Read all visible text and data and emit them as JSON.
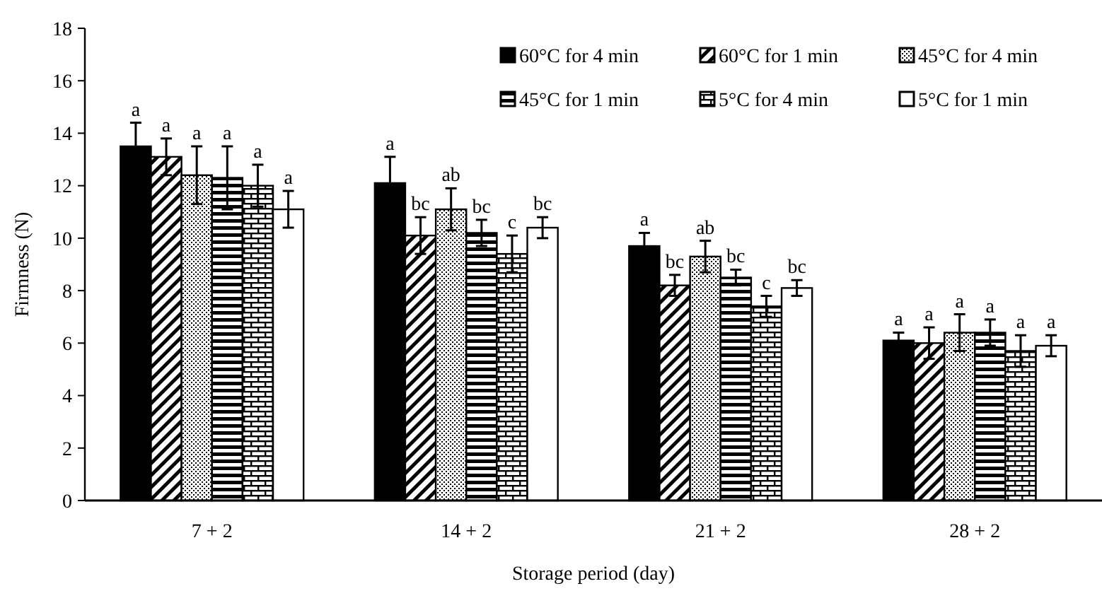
{
  "chart_data": {
    "type": "bar",
    "xlabel": "Storage period (day)",
    "ylabel": "Firmness (N)",
    "categories": [
      "7 + 2",
      "14 + 2",
      "21 + 2",
      "28 + 2"
    ],
    "ylim": [
      0,
      18
    ],
    "yticks": [
      0,
      2,
      4,
      6,
      8,
      10,
      12,
      14,
      16,
      18
    ],
    "grid": false,
    "legend": "top right",
    "series": [
      {
        "name": "60°C for 4 min",
        "color": "#000000",
        "values": [
          13.5,
          12.1,
          9.7,
          6.1
        ],
        "errors": [
          0.9,
          1.0,
          0.5,
          0.3
        ],
        "value_labels": [
          "a",
          "a",
          "a",
          "a"
        ]
      },
      {
        "name": "60°C for 1 min",
        "color": "#000000",
        "values": [
          13.1,
          10.1,
          8.2,
          6.0
        ],
        "errors": [
          0.7,
          0.7,
          0.4,
          0.6
        ],
        "value_labels": [
          "a",
          "bc",
          "bc",
          "a"
        ]
      },
      {
        "name": "45°C for 4 min",
        "color": "#000000",
        "values": [
          12.4,
          11.1,
          9.3,
          6.4
        ],
        "errors": [
          1.1,
          0.8,
          0.6,
          0.7
        ],
        "value_labels": [
          "a",
          "ab",
          "ab",
          "a"
        ]
      },
      {
        "name": "45°C for 1 min",
        "color": "#000000",
        "values": [
          12.3,
          10.2,
          8.5,
          6.4
        ],
        "errors": [
          1.2,
          0.5,
          0.3,
          0.5
        ],
        "value_labels": [
          "a",
          "bc",
          "bc",
          "a"
        ]
      },
      {
        "name": "5°C for 4 min",
        "color": "#000000",
        "values": [
          12.0,
          9.4,
          7.4,
          5.7
        ],
        "errors": [
          0.8,
          0.7,
          0.4,
          0.6
        ],
        "value_labels": [
          "a",
          "c",
          "c",
          "a"
        ]
      },
      {
        "name": "5°C for 1 min",
        "color": "#ffffff",
        "values": [
          11.1,
          10.4,
          8.1,
          5.9
        ],
        "errors": [
          0.7,
          0.4,
          0.3,
          0.4
        ],
        "value_labels": [
          "a",
          "bc",
          "bc",
          "a"
        ]
      }
    ]
  }
}
